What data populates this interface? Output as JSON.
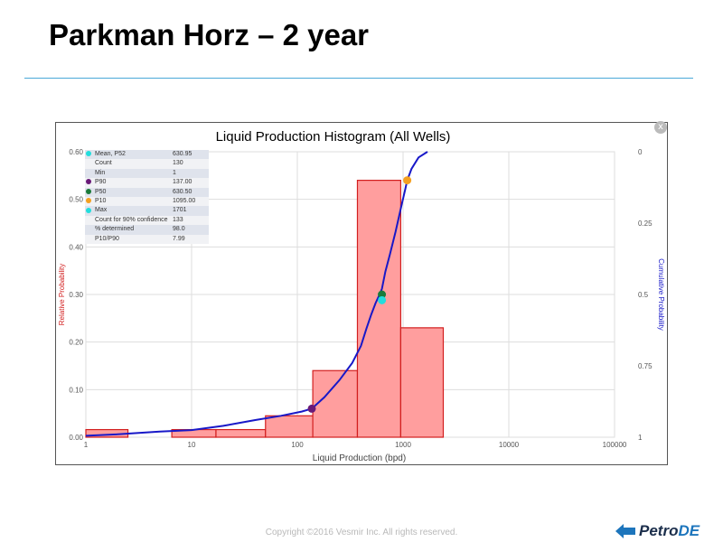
{
  "slide": {
    "title": "Parkman Horz – 2 year",
    "footer": "Copyright ©2016 Vesmir Inc. All rights reserved.",
    "logo": {
      "part1": "Petro",
      "part2": "DE"
    },
    "close_label": "x"
  },
  "colors": {
    "bar_fill": "#ff9e9e",
    "bar_edge": "#d21f1f",
    "cdf_line": "#1818c8",
    "title_rule": "#4aa8d8",
    "mean": "#22dddd",
    "p90": "#6a1a78",
    "p50": "#1a7a3a",
    "p10": "#f5a020",
    "max": "#22dddd"
  },
  "stats": [
    {
      "marker": "mean",
      "label": "Mean, P52",
      "value": "630.95"
    },
    {
      "marker": "",
      "label": "Count",
      "value": "130"
    },
    {
      "marker": "",
      "label": "Min",
      "value": "1"
    },
    {
      "marker": "p90",
      "label": "P90",
      "value": "137.00"
    },
    {
      "marker": "p50",
      "label": "P50",
      "value": "630.50"
    },
    {
      "marker": "p10",
      "label": "P10",
      "value": "1095.00"
    },
    {
      "marker": "max",
      "label": "Max",
      "value": "1701"
    },
    {
      "marker": "",
      "label": "Count for 90% confidence",
      "value": "133"
    },
    {
      "marker": "",
      "label": "% determined",
      "value": "98.0"
    },
    {
      "marker": "",
      "label": "P10/P90",
      "value": "7.99"
    }
  ],
  "chart_data": {
    "type": "bar",
    "title": "Liquid Production Histogram (All Wells)",
    "xlabel": "Liquid Production (bpd)",
    "ylabel": "Relative Probability",
    "y2label": "Cumulative Probability",
    "x_scale": "log",
    "xlim": [
      1,
      100000
    ],
    "ylim": [
      0,
      0.6
    ],
    "y2lim": [
      0,
      1
    ],
    "y2_reversed": true,
    "grid": true,
    "x_ticks": [
      "1",
      "10",
      "100",
      "1000",
      "10000",
      "100000"
    ],
    "y_ticks": [
      "0.00",
      "0.10",
      "0.20",
      "0.30",
      "0.40",
      "0.50",
      "0.60"
    ],
    "y2_ticks": [
      "0",
      "0.25",
      "0.5",
      "0.75",
      "1"
    ],
    "bins": [
      {
        "x0": 1,
        "x1": 2.5,
        "value": 0.016
      },
      {
        "x0": 6.5,
        "x1": 17,
        "value": 0.016
      },
      {
        "x0": 17,
        "x1": 50,
        "value": 0.016
      },
      {
        "x0": 50,
        "x1": 140,
        "value": 0.045
      },
      {
        "x0": 140,
        "x1": 370,
        "value": 0.14
      },
      {
        "x0": 370,
        "x1": 950,
        "value": 0.54
      },
      {
        "x0": 950,
        "x1": 2400,
        "value": 0.23
      }
    ],
    "cumulative": {
      "x": [
        1,
        2,
        5,
        10,
        20,
        40,
        70,
        110,
        137,
        180,
        250,
        330,
        400,
        450,
        500,
        550,
        600,
        631,
        680,
        750,
        850,
        950,
        1050,
        1095,
        1200,
        1400,
        1701
      ],
      "y": [
        0.995,
        0.99,
        0.98,
        0.975,
        0.96,
        0.94,
        0.925,
        0.91,
        0.9,
        0.86,
        0.8,
        0.74,
        0.68,
        0.62,
        0.57,
        0.53,
        0.5,
        0.48,
        0.42,
        0.36,
        0.28,
        0.2,
        0.13,
        0.1,
        0.06,
        0.02,
        0.0
      ]
    },
    "markers": [
      {
        "name": "P90",
        "color": "p90",
        "x": 137,
        "y": 0.9
      },
      {
        "name": "P50",
        "color": "p50",
        "x": 630.5,
        "y": 0.5
      },
      {
        "name": "Mean",
        "color": "mean",
        "x": 630.95,
        "y": 0.52
      },
      {
        "name": "P10",
        "color": "p10",
        "x": 1095,
        "y": 0.1
      }
    ]
  }
}
